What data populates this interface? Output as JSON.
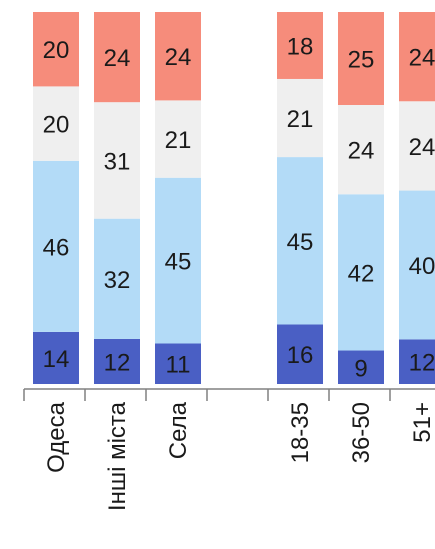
{
  "chart_data": {
    "type": "bar",
    "stacked": true,
    "orientation": "vertical",
    "percent_scale": true,
    "categories": [
      "Одеса",
      "Інші міста",
      "Села",
      "",
      "18-35",
      "36-50",
      "51+"
    ],
    "series": [
      {
        "color": "#4a5fc4",
        "values": [
          14,
          12,
          11,
          null,
          16,
          9,
          12
        ]
      },
      {
        "color": "#b3dbf7",
        "values": [
          46,
          32,
          45,
          null,
          45,
          42,
          40
        ]
      },
      {
        "color": "#efefef",
        "values": [
          20,
          31,
          21,
          null,
          21,
          24,
          24
        ]
      },
      {
        "color": "#f68c7b",
        "values": [
          20,
          24,
          24,
          null,
          18,
          25,
          24
        ]
      }
    ],
    "axis_color": "#808080",
    "gridlines": false,
    "legend": "none"
  }
}
